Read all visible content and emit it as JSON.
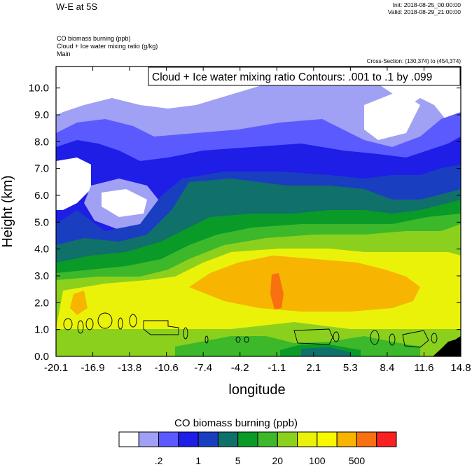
{
  "header": {
    "title": "W-E at 5S",
    "init": "Init: 2018-08-25_00:00:00",
    "valid": "Valid: 2018-08-29_21:00:00",
    "subtitle_lines": [
      "CO biomass burning   (ppb)",
      "Cloud + Ice water mixing ratio   (g/kg)",
      "Main"
    ],
    "cross_section": "Cross-Section: (130,374) to (454,374)",
    "contour_info": "Cloud + Ice water mixing ratio Contours: .001 to .1 by .099"
  },
  "chart_data": {
    "type": "heatmap",
    "xlabel": "longitude",
    "ylabel": "Height (km)",
    "x_ticks": [
      "-20.1",
      "-16.9",
      "-13.8",
      "-10.6",
      "-7.4",
      "-4.2",
      "-1.1",
      "2.1",
      "5.3",
      "8.4",
      "11.6",
      "14.8"
    ],
    "y_ticks": [
      "0.0",
      "1.0",
      "2.0",
      "3.0",
      "4.0",
      "5.0",
      "6.0",
      "7.0",
      "8.0",
      "9.0",
      "10.0"
    ],
    "xlim": [
      -20.1,
      14.8
    ],
    "ylim": [
      0.0,
      10.8
    ],
    "legend": {
      "title": "CO biomass burning  (ppb)",
      "labels": [
        ".2",
        "1",
        "5",
        "20",
        "100",
        "500"
      ],
      "colors": [
        "#ffffff",
        "#a0a0f5",
        "#5a5aff",
        "#1e1ee6",
        "#1a3ec0",
        "#10706a",
        "#0a9a28",
        "#3cb82a",
        "#8cd01e",
        "#eaf20a",
        "#f8f800",
        "#f7b400",
        "#f87010",
        "#f82020"
      ]
    },
    "series": [
      {
        "name": "CO biomass burning",
        "units": "ppb"
      },
      {
        "name": "Cloud + Ice water mixing ratio",
        "units": "g/kg",
        "contour_levels": [
          0.001,
          0.1
        ]
      }
    ]
  }
}
